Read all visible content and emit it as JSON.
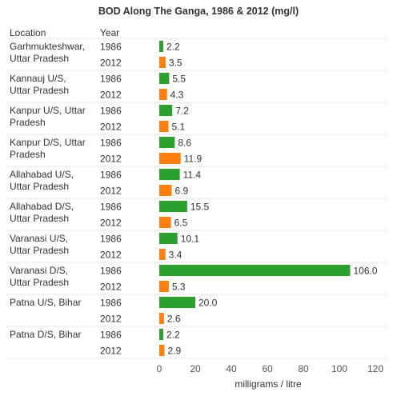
{
  "chart_data": {
    "type": "bar",
    "orientation": "horizontal",
    "title": "BOD Along The Ganga, 1986 & 2012 (mg/l)",
    "table_headers": {
      "location": "Location",
      "year": "Year"
    },
    "xlabel": "milligrams / litre",
    "xlim": [
      0,
      120
    ],
    "xticks": [
      0,
      20,
      40,
      60,
      80,
      100,
      120
    ],
    "value_format_decimals": 1,
    "grid": false,
    "colors": {
      "1986": "#2ca02c",
      "2012": "#ff7f0e",
      "text": "#333333",
      "title": "#333333",
      "separator": "#e6e6e6",
      "tick_text": "#555555"
    },
    "locations": [
      {
        "name": "Garhmukteshwar, Uttar Pradesh",
        "label_lines": [
          "Garhmukteshwar,",
          "Uttar Pradesh"
        ],
        "rows": [
          {
            "year": "1986",
            "value": 2.2,
            "label": "2.2"
          },
          {
            "year": "2012",
            "value": 3.5,
            "label": "3.5"
          }
        ]
      },
      {
        "name": "Kannauj U/S, Uttar Pradesh",
        "label_lines": [
          "Kannauj U/S,",
          "Uttar Pradesh"
        ],
        "rows": [
          {
            "year": "1986",
            "value": 5.5,
            "label": "5.5"
          },
          {
            "year": "2012",
            "value": 4.3,
            "label": "4.3"
          }
        ]
      },
      {
        "name": "Kanpur U/S, Uttar Pradesh",
        "label_lines": [
          "Kanpur U/S, Uttar",
          "Pradesh"
        ],
        "rows": [
          {
            "year": "1986",
            "value": 7.2,
            "label": "7.2"
          },
          {
            "year": "2012",
            "value": 5.1,
            "label": "5.1"
          }
        ]
      },
      {
        "name": "Kanpur D/S, Uttar Pradesh",
        "label_lines": [
          "Kanpur D/S, Uttar",
          "Pradesh"
        ],
        "rows": [
          {
            "year": "1986",
            "value": 8.6,
            "label": "8.6"
          },
          {
            "year": "2012",
            "value": 11.9,
            "label": "11.9"
          }
        ]
      },
      {
        "name": "Allahabad U/S, Uttar Pradesh",
        "label_lines": [
          "Allahabad U/S,",
          "Uttar Pradesh"
        ],
        "rows": [
          {
            "year": "1986",
            "value": 11.4,
            "label": "11.4"
          },
          {
            "year": "2012",
            "value": 6.9,
            "label": "6.9"
          }
        ]
      },
      {
        "name": "Allahabad D/S, Uttar Pradesh",
        "label_lines": [
          "Allahabad D/S,",
          "Uttar Pradesh"
        ],
        "rows": [
          {
            "year": "1986",
            "value": 15.5,
            "label": "15.5"
          },
          {
            "year": "2012",
            "value": 6.5,
            "label": "6.5"
          }
        ]
      },
      {
        "name": "Varanasi U/S, Uttar Pradesh",
        "label_lines": [
          "Varanasi U/S,",
          "Uttar Pradesh"
        ],
        "rows": [
          {
            "year": "1986",
            "value": 10.1,
            "label": "10.1"
          },
          {
            "year": "2012",
            "value": 3.4,
            "label": "3.4"
          }
        ]
      },
      {
        "name": "Varanasi D/S, Uttar Pradesh",
        "label_lines": [
          "Varanasi D/S,",
          "Uttar Pradesh"
        ],
        "rows": [
          {
            "year": "1986",
            "value": 106.0,
            "label": "106.0"
          },
          {
            "year": "2012",
            "value": 5.3,
            "label": "5.3"
          }
        ]
      },
      {
        "name": "Patna U/S, Bihar",
        "label_lines": [
          "Patna U/S, Bihar"
        ],
        "rows": [
          {
            "year": "1986",
            "value": 20.0,
            "label": "20.0"
          },
          {
            "year": "2012",
            "value": 2.6,
            "label": "2.6"
          }
        ]
      },
      {
        "name": "Patna D/S, Bihar",
        "label_lines": [
          "Patna D/S, Bihar"
        ],
        "rows": [
          {
            "year": "1986",
            "value": 2.2,
            "label": "2.2"
          },
          {
            "year": "2012",
            "value": 2.9,
            "label": "2.9"
          }
        ]
      }
    ]
  }
}
